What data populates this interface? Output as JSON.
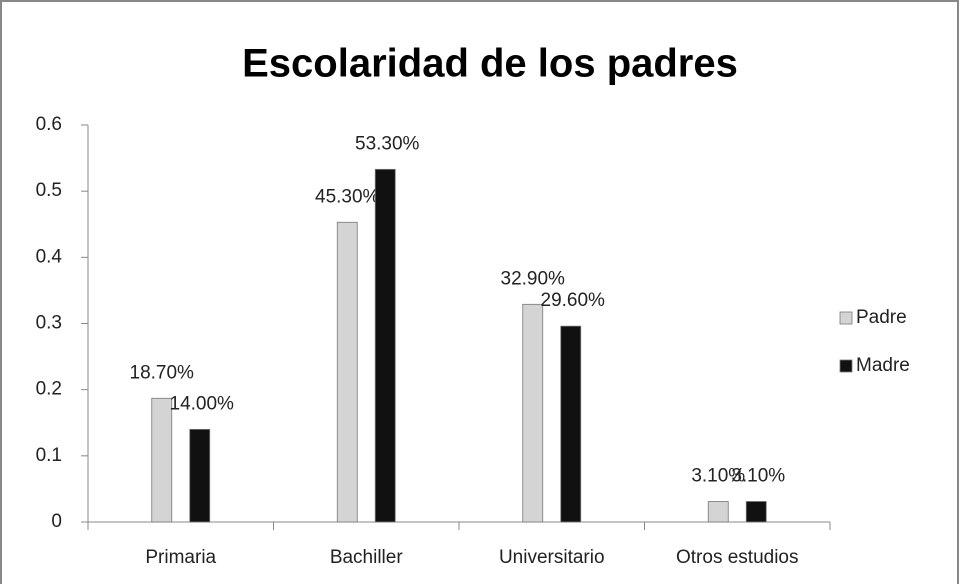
{
  "chart_data": {
    "type": "bar",
    "title": "Escolaridad de los padres",
    "categories": [
      "Primaria",
      "Bachiller",
      "Universitario",
      "Otros estudios"
    ],
    "series": [
      {
        "name": "Padre",
        "color": "#d4d4d4",
        "values": [
          0.187,
          0.453,
          0.329,
          0.031
        ],
        "value_labels": [
          "18.70%",
          "45.30%",
          "32.90%",
          "3.10%"
        ]
      },
      {
        "name": "Madre",
        "color": "#111111",
        "values": [
          0.14,
          0.533,
          0.296,
          0.031
        ],
        "value_labels": [
          "14.00%",
          "53.30%",
          "29.60%",
          "3.10%"
        ]
      }
    ],
    "ylim": [
      0,
      0.6
    ],
    "yticks": [
      0,
      0.1,
      0.2,
      0.3,
      0.4,
      0.5,
      0.6
    ],
    "legend": "right"
  }
}
